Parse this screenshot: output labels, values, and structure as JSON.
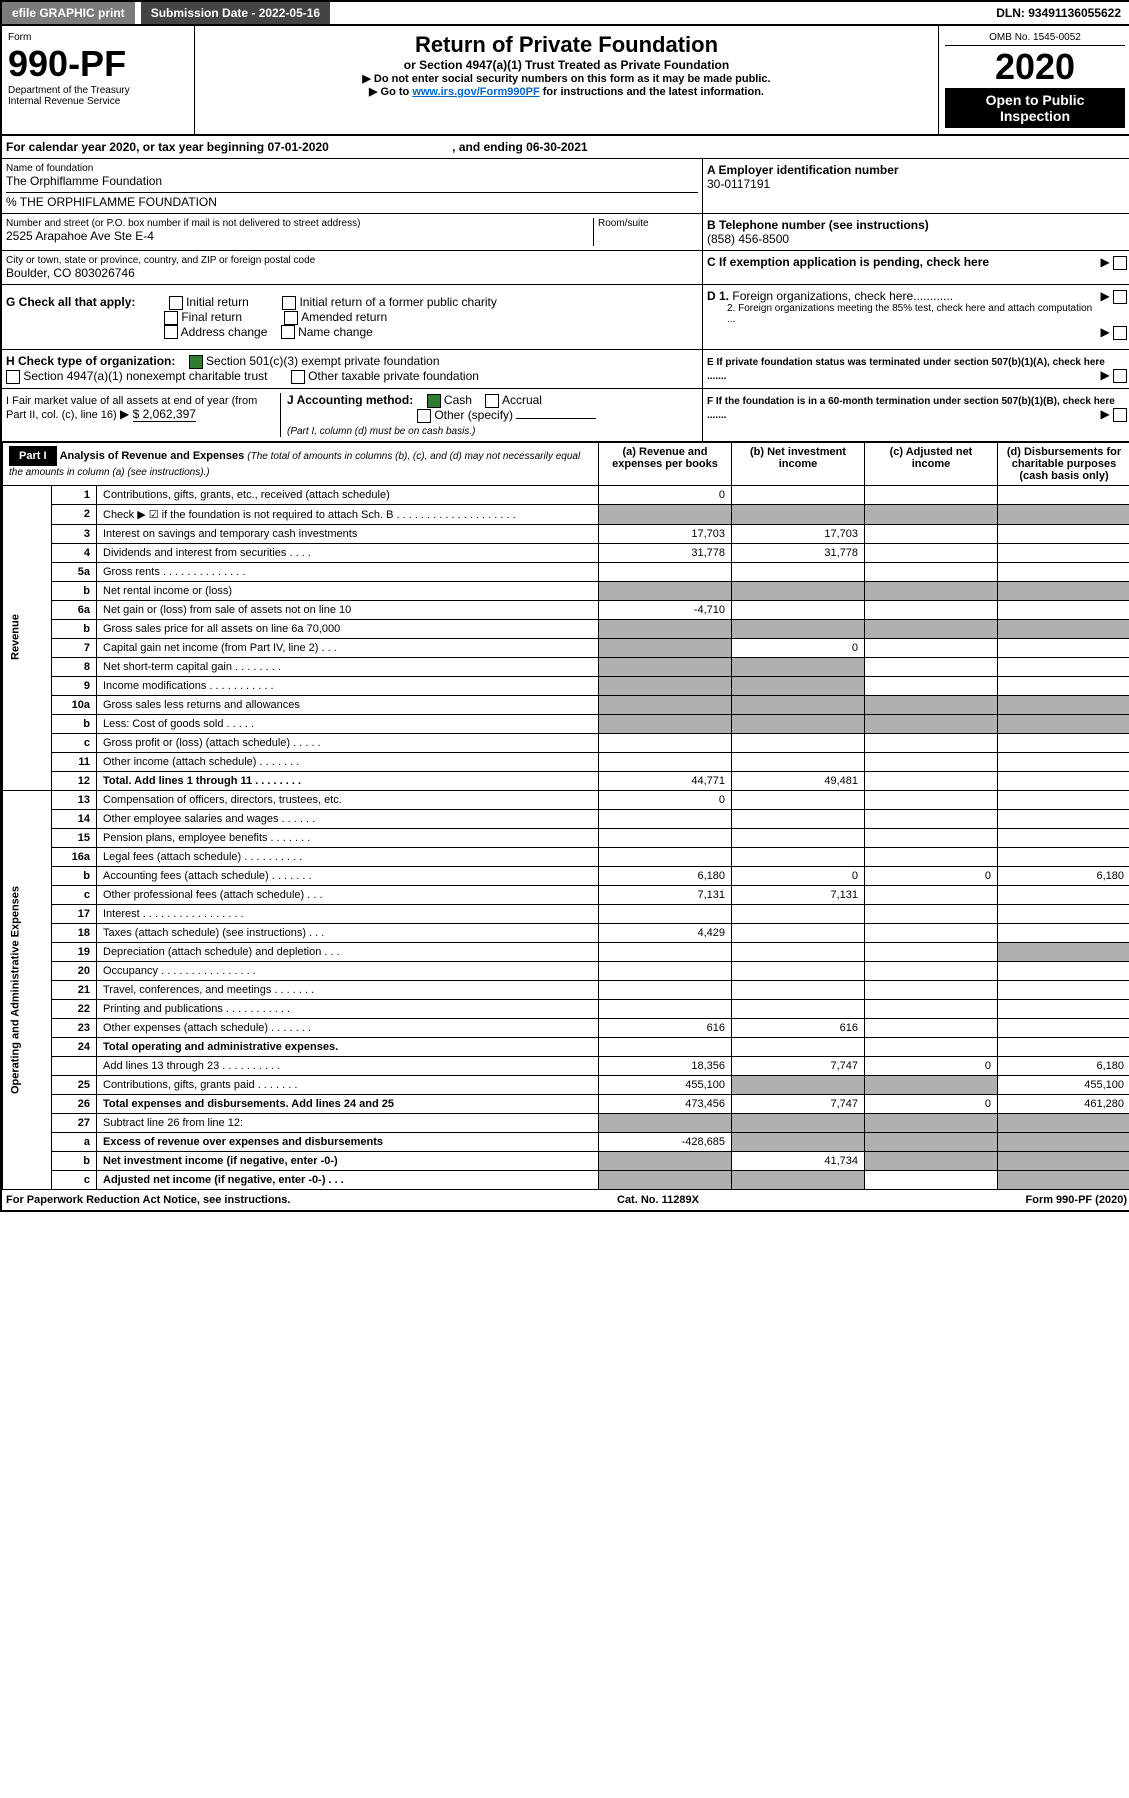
{
  "topbar": {
    "efile": "efile GRAPHIC print",
    "sub": "Submission Date - 2022-05-16",
    "dln": "DLN: 93491136055622"
  },
  "header": {
    "form": "Form",
    "num": "990-PF",
    "dept": "Department of the Treasury",
    "irs": "Internal Revenue Service",
    "title": "Return of Private Foundation",
    "sub": "or Section 4947(a)(1) Trust Treated as Private Foundation",
    "l1": "▶ Do not enter social security numbers on this form as it may be made public.",
    "l2": "▶ Go to ",
    "link": "www.irs.gov/Form990PF",
    "l2b": " for instructions and the latest information.",
    "omb": "OMB No. 1545-0052",
    "year": "2020",
    "open": "Open to Public Inspection"
  },
  "cal": {
    "a": "For calendar year 2020, or tax year beginning 07-01-2020",
    "b": ", and ending 06-30-2021"
  },
  "name": {
    "lbl": "Name of foundation",
    "v": "The Orphiflamme Foundation",
    "care": "% THE ORPHIFLAMME FOUNDATION"
  },
  "addr": {
    "lbl": "Number and street (or P.O. box number if mail is not delivered to street address)",
    "room": "Room/suite",
    "v": "2525 Arapahoe Ave Ste E-4"
  },
  "city": {
    "lbl": "City or town, state or province, country, and ZIP or foreign postal code",
    "v": "Boulder, CO  803026746"
  },
  "A": {
    "lbl": "A Employer identification number",
    "v": "30-0117191"
  },
  "B": {
    "lbl": "B Telephone number (see instructions)",
    "v": "(858) 456-8500"
  },
  "C": "C If exemption application is pending, check here",
  "D1": "D 1. Foreign organizations, check here............",
  "D2": "2. Foreign organizations meeting the 85% test, check here and attach computation ...",
  "E": "E  If private foundation status was terminated under section 507(b)(1)(A), check here .......",
  "F": "F  If the foundation is in a 60-month termination under section 507(b)(1)(B), check here .......",
  "G": {
    "lbl": "G Check all that apply:",
    "o": [
      "Initial return",
      "Final return",
      "Address change",
      "Initial return of a former public charity",
      "Amended return",
      "Name change"
    ]
  },
  "H": {
    "lbl": "H Check type of organization:",
    "o1": "Section 501(c)(3) exempt private foundation",
    "o2": "Section 4947(a)(1) nonexempt charitable trust",
    "o3": "Other taxable private foundation"
  },
  "I": {
    "lbl": "I Fair market value of all assets at end of year (from Part II, col. (c), line 16)",
    "v": "$  2,062,397"
  },
  "J": {
    "lbl": "J Accounting method:",
    "o1": "Cash",
    "o2": "Accrual",
    "o3": "Other (specify)",
    "note": "(Part I, column (d) must be on cash basis.)"
  },
  "part1": {
    "title": "Part I",
    "hdr": "Analysis of Revenue and Expenses",
    "note": "(The total of amounts in columns (b), (c), and (d) may not necessarily equal the amounts in column (a) (see instructions).)",
    "cols": [
      "(a)  Revenue and expenses per books",
      "(b)  Net investment income",
      "(c)  Adjusted net income",
      "(d)  Disbursements for charitable purposes (cash basis only)"
    ]
  },
  "side": {
    "rev": "Revenue",
    "exp": "Operating and Administrative Expenses"
  },
  "rows": [
    {
      "n": "1",
      "t": "Contributions, gifts, grants, etc., received (attach schedule)",
      "a": "0"
    },
    {
      "n": "2",
      "t": "Check ▶ ☑ if the foundation is not required to attach Sch. B  . . . . . . . . . . . . . . . . . . . .",
      "grey": [
        "a",
        "b",
        "c",
        "d"
      ]
    },
    {
      "n": "3",
      "t": "Interest on savings and temporary cash investments",
      "a": "17,703",
      "b": "17,703"
    },
    {
      "n": "4",
      "t": "Dividends and interest from securities  . . . .",
      "a": "31,778",
      "b": "31,778"
    },
    {
      "n": "5a",
      "t": "Gross rents  . . . . . . . . . . . . . ."
    },
    {
      "n": "b",
      "t": "Net rental income or (loss)",
      "grey": [
        "a",
        "b",
        "c",
        "d"
      ]
    },
    {
      "n": "6a",
      "t": "Net gain or (loss) from sale of assets not on line 10",
      "a": "-4,710"
    },
    {
      "n": "b",
      "t": "Gross sales price for all assets on line 6a          70,000",
      "grey": [
        "a",
        "b",
        "c",
        "d"
      ]
    },
    {
      "n": "7",
      "t": "Capital gain net income (from Part IV, line 2)  . . .",
      "b": "0",
      "grey": [
        "a"
      ]
    },
    {
      "n": "8",
      "t": "Net short-term capital gain  . . . . . . . .",
      "grey": [
        "a",
        "b"
      ]
    },
    {
      "n": "9",
      "t": "Income modifications  . . . . . . . . . . .",
      "grey": [
        "a",
        "b"
      ]
    },
    {
      "n": "10a",
      "t": "Gross sales less returns and allowances",
      "grey": [
        "a",
        "b",
        "c",
        "d"
      ]
    },
    {
      "n": "b",
      "t": "Less: Cost of goods sold  . . . . .",
      "grey": [
        "a",
        "b",
        "c",
        "d"
      ]
    },
    {
      "n": "c",
      "t": "Gross profit or (loss) (attach schedule)  . . . . ."
    },
    {
      "n": "11",
      "t": "Other income (attach schedule)  . . . . . . ."
    },
    {
      "n": "12",
      "t": "Total. Add lines 1 through 11  . . . . . . . .",
      "bold": true,
      "a": "44,771",
      "b": "49,481"
    },
    {
      "n": "13",
      "t": "Compensation of officers, directors, trustees, etc.",
      "a": "0"
    },
    {
      "n": "14",
      "t": "Other employee salaries and wages  . . . . . ."
    },
    {
      "n": "15",
      "t": "Pension plans, employee benefits  . . . . . . ."
    },
    {
      "n": "16a",
      "t": "Legal fees (attach schedule) . . . . . . . . . ."
    },
    {
      "n": "b",
      "t": "Accounting fees (attach schedule) . . . . . . .",
      "a": "6,180",
      "b": "0",
      "c": "0",
      "d": "6,180"
    },
    {
      "n": "c",
      "t": "Other professional fees (attach schedule)  . . .",
      "a": "7,131",
      "b": "7,131"
    },
    {
      "n": "17",
      "t": "Interest . . . . . . . . . . . . . . . . ."
    },
    {
      "n": "18",
      "t": "Taxes (attach schedule) (see instructions)  . . .",
      "a": "4,429"
    },
    {
      "n": "19",
      "t": "Depreciation (attach schedule) and depletion  . . .",
      "grey": [
        "d"
      ]
    },
    {
      "n": "20",
      "t": "Occupancy . . . . . . . . . . . . . . . ."
    },
    {
      "n": "21",
      "t": "Travel, conferences, and meetings . . . . . . ."
    },
    {
      "n": "22",
      "t": "Printing and publications . . . . . . . . . . ."
    },
    {
      "n": "23",
      "t": "Other expenses (attach schedule) . . . . . . .",
      "a": "616",
      "b": "616"
    },
    {
      "n": "24",
      "t": "Total operating and administrative expenses.",
      "bold": true
    },
    {
      "n": "",
      "t": "Add lines 13 through 23  . . . . . . . . . .",
      "a": "18,356",
      "b": "7,747",
      "c": "0",
      "d": "6,180"
    },
    {
      "n": "25",
      "t": "Contributions, gifts, grants paid  . . . . . . .",
      "a": "455,100",
      "d": "455,100",
      "grey": [
        "b",
        "c"
      ]
    },
    {
      "n": "26",
      "t": "Total expenses and disbursements. Add lines 24 and 25",
      "bold": true,
      "a": "473,456",
      "b": "7,747",
      "c": "0",
      "d": "461,280"
    },
    {
      "n": "27",
      "t": "Subtract line 26 from line 12:",
      "grey": [
        "a",
        "b",
        "c",
        "d"
      ]
    },
    {
      "n": "a",
      "t": "Excess of revenue over expenses and disbursements",
      "bold": true,
      "a": "-428,685",
      "grey": [
        "b",
        "c",
        "d"
      ]
    },
    {
      "n": "b",
      "t": "Net investment income (if negative, enter -0-)",
      "bold": true,
      "b": "41,734",
      "grey": [
        "a",
        "c",
        "d"
      ]
    },
    {
      "n": "c",
      "t": "Adjusted net income (if negative, enter -0-)  . . .",
      "bold": true,
      "grey": [
        "a",
        "b",
        "d"
      ]
    }
  ],
  "footer": {
    "l": "For Paperwork Reduction Act Notice, see instructions.",
    "m": "Cat. No. 11289X",
    "r": "Form 990-PF (2020)"
  }
}
